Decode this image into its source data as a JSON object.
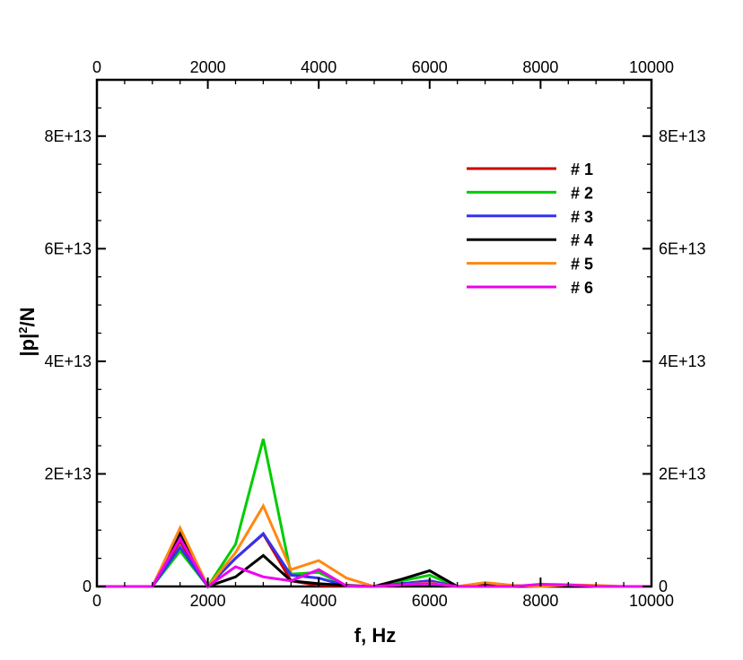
{
  "chart_data": {
    "type": "line",
    "xlabel": "f, Hz",
    "ylabel": "|p|²/N",
    "ylabel_parts": {
      "base": "|p|",
      "sup": "2",
      "rest": "/N"
    },
    "xlim": [
      0,
      10000
    ],
    "ylim": [
      0,
      90000000000000.0
    ],
    "x_ticks": [
      0,
      2000,
      4000,
      6000,
      8000,
      10000
    ],
    "x_tick_labels": [
      "0",
      "2000",
      "4000",
      "6000",
      "8000",
      "10000"
    ],
    "y_ticks": [
      0,
      20000000000000.0,
      40000000000000.0,
      60000000000000.0,
      80000000000000.0
    ],
    "y_tick_labels": [
      "0",
      "2E+13",
      "4E+13",
      "6E+13",
      "8E+13"
    ],
    "grid": false,
    "legend_position": "top-right",
    "series": [
      {
        "name": "# 1",
        "color": "#cc0000",
        "x": [
          0,
          500,
          1000,
          1500,
          2000,
          2500,
          3000,
          3500,
          4000,
          4500,
          5000,
          5500,
          6000,
          6500,
          7000,
          7500,
          8000,
          8500,
          9000,
          9500,
          10000
        ],
        "y": [
          0,
          0,
          0,
          8000000000000.0,
          0,
          5000000000000.0,
          9300000000000.0,
          1000000000000.0,
          200000000000.0,
          100000000000.0,
          0,
          500000000000.0,
          1000000000000.0,
          0,
          100000000000.0,
          0,
          100000000000.0,
          100000000000.0,
          0,
          0,
          0
        ]
      },
      {
        "name": "# 2",
        "color": "#00cc00",
        "x": [
          0,
          500,
          1000,
          1500,
          2000,
          2500,
          3000,
          3500,
          4000,
          4500,
          5000,
          5500,
          6000,
          6500,
          7000,
          7500,
          8000,
          8500,
          9000,
          9500,
          10000
        ],
        "y": [
          0,
          0,
          0,
          6300000000000.0,
          0,
          7500000000000.0,
          26200000000000.0,
          2200000000000.0,
          2500000000000.0,
          100000000000.0,
          0,
          1000000000000.0,
          2000000000000.0,
          0,
          0,
          0,
          0,
          0,
          0,
          0,
          0
        ]
      },
      {
        "name": "# 3",
        "color": "#3333ee",
        "x": [
          0,
          500,
          1000,
          1500,
          2000,
          2500,
          3000,
          3500,
          4000,
          4500,
          5000,
          5500,
          6000,
          6500,
          7000,
          7500,
          8000,
          8500,
          9000,
          9500,
          10000
        ],
        "y": [
          0,
          0,
          0,
          7000000000000.0,
          0,
          5000000000000.0,
          9400000000000.0,
          2000000000000.0,
          1500000000000.0,
          100000000000.0,
          0,
          500000000000.0,
          1000000000000.0,
          0,
          0,
          0,
          0,
          0,
          0,
          0,
          0
        ]
      },
      {
        "name": "# 4",
        "color": "#000000",
        "x": [
          0,
          500,
          1000,
          1500,
          2000,
          2500,
          3000,
          3500,
          4000,
          4500,
          5000,
          5500,
          6000,
          6500,
          7000,
          7500,
          8000,
          8500,
          9000,
          9500,
          10000
        ],
        "y": [
          0,
          0,
          0,
          9500000000000.0,
          0,
          1700000000000.0,
          5500000000000.0,
          1000000000000.0,
          500000000000.0,
          200000000000.0,
          0,
          1300000000000.0,
          2800000000000.0,
          0,
          300000000000.0,
          0,
          100000000000.0,
          0,
          0,
          0,
          0
        ]
      },
      {
        "name": "# 5",
        "color": "#ff8811",
        "x": [
          0,
          500,
          1000,
          1500,
          2000,
          2500,
          3000,
          3500,
          4000,
          4500,
          5000,
          5500,
          6000,
          6500,
          7000,
          7500,
          8000,
          8500,
          9000,
          9500,
          10000
        ],
        "y": [
          0,
          0,
          0,
          10400000000000.0,
          0,
          6000000000000.0,
          14300000000000.0,
          3000000000000.0,
          4600000000000.0,
          1500000000000.0,
          0,
          300000000000.0,
          600000000000.0,
          0,
          700000000000.0,
          200000000000.0,
          0,
          300000000000.0,
          200000000000.0,
          0,
          0
        ]
      },
      {
        "name": "# 6",
        "color": "#ee00ee",
        "x": [
          0,
          500,
          1000,
          1500,
          2000,
          2500,
          3000,
          3500,
          4000,
          4500,
          5000,
          5500,
          6000,
          6500,
          7000,
          7500,
          8000,
          8500,
          9000,
          9500,
          10000
        ],
        "y": [
          0,
          0,
          0,
          8500000000000.0,
          0,
          3500000000000.0,
          1700000000000.0,
          1000000000000.0,
          3000000000000.0,
          100000000000.0,
          0,
          300000000000.0,
          500000000000.0,
          0,
          0,
          0,
          400000000000.0,
          300000000000.0,
          0,
          0,
          0
        ]
      }
    ]
  }
}
